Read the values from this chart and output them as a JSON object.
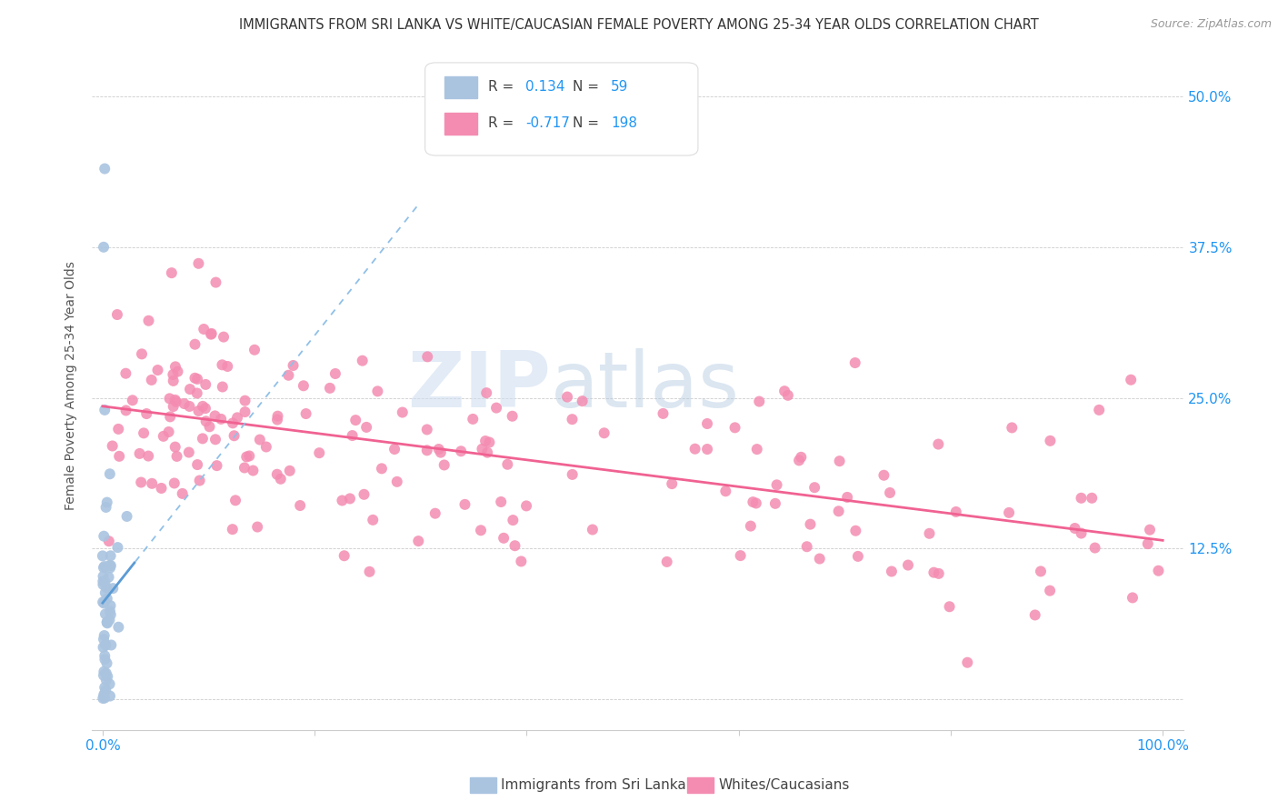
{
  "title": "IMMIGRANTS FROM SRI LANKA VS WHITE/CAUCASIAN FEMALE POVERTY AMONG 25-34 YEAR OLDS CORRELATION CHART",
  "source": "Source: ZipAtlas.com",
  "ylabel": "Female Poverty Among 25-34 Year Olds",
  "r_sri_lanka": 0.134,
  "n_sri_lanka": 59,
  "r_whites": -0.717,
  "n_whites": 198,
  "sri_lanka_color": "#aac4e0",
  "whites_color": "#f48cb1",
  "sri_lanka_line_color": "#5b9bd5",
  "whites_line_color": "#f06292",
  "background_color": "#ffffff",
  "watermark_zip": "ZIP",
  "watermark_atlas": "atlas",
  "legend_label_1": "Immigrants from Sri Lanka",
  "legend_label_2": "Whites/Caucasians",
  "title_fontsize": 10.5,
  "source_fontsize": 9,
  "axis_color": "#2196F3",
  "seed": 7
}
